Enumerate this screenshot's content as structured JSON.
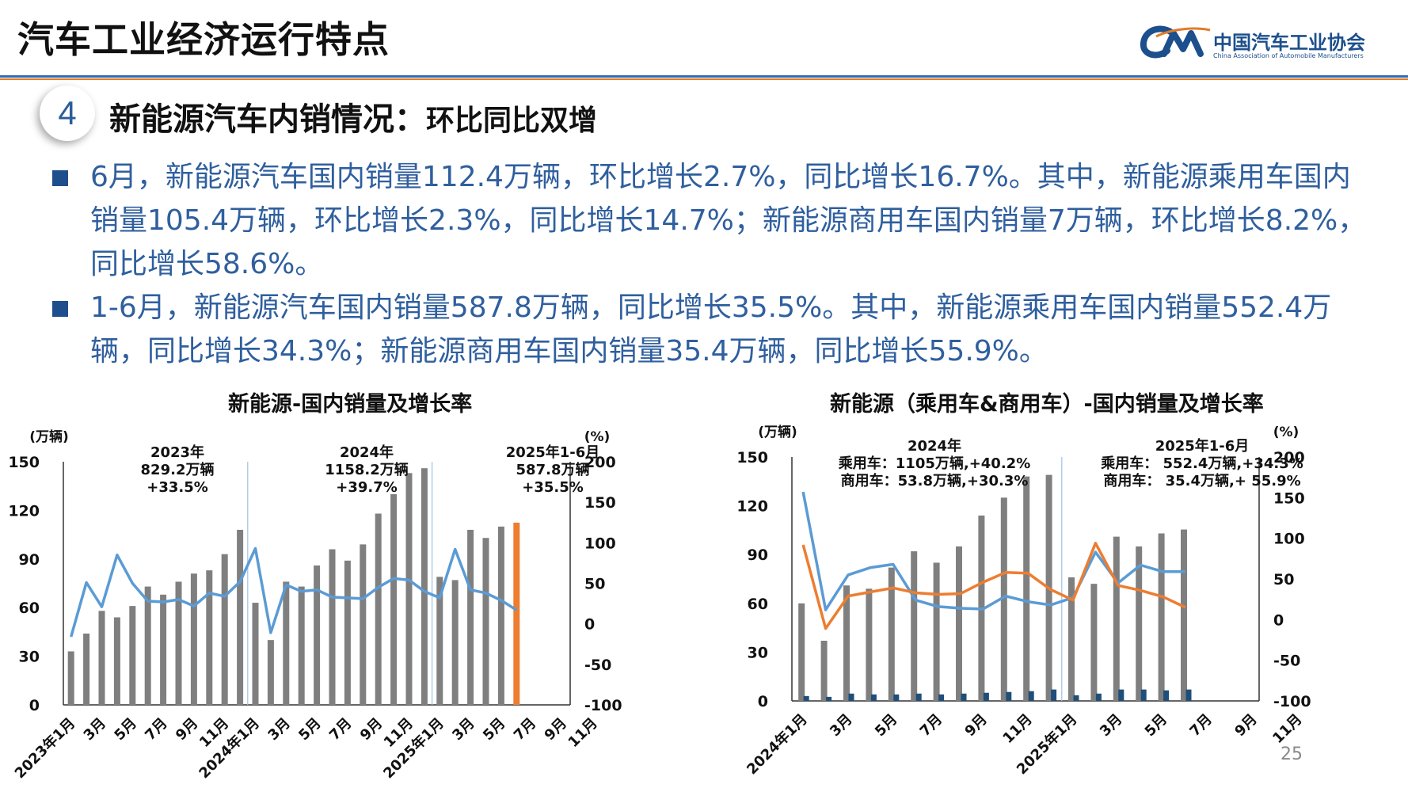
{
  "header": {
    "title": "汽车工业经济运行特点",
    "logo_cn": "中国汽车工业协会",
    "logo_en": "China Association of Automobile Manufacturers"
  },
  "section": {
    "number": "4",
    "title": "新能源汽车内销情况：",
    "subtitle": "环比同比双增"
  },
  "bullets": [
    "6月，新能源汽车国内销量112.4万辆，环比增长2.7%，同比增长16.7%。其中，新能源乘用车国内销量105.4万辆，环比增长2.3%，同比增长14.7%；新能源商用车国内销量7万辆，环比增长8.2%，同比增长58.6%。",
    "1-6月，新能源汽车国内销量587.8万辆，同比增长35.5%。其中，新能源乘用车国内销量552.4万辆，同比增长34.3%；新能源商用车国内销量35.4万辆，同比增长55.9%。"
  ],
  "page_number": "25",
  "colors": {
    "bar_gray": "#7f7f7f",
    "bar_highlight": "#ed7d31",
    "line_blue": "#5b9bd5",
    "line_orange": "#ed7d31",
    "bar_navy": "#1f4e79"
  },
  "chart_data": [
    {
      "type": "bar",
      "title": "新能源-国内销量及增长率",
      "y_left_unit": "(万辆)",
      "y_right_unit": "(%)",
      "ylim_left": [
        0,
        150
      ],
      "yticks_left": [
        "0",
        "30",
        "60",
        "90",
        "120",
        "150"
      ],
      "ylim_right": [
        -100,
        200
      ],
      "yticks_right": [
        "-100",
        "-50",
        "0",
        "50",
        "100",
        "150",
        "200"
      ],
      "x_tick_labels": [
        "2023年1月",
        "3月",
        "5月",
        "7月",
        "9月",
        "11月",
        "2024年1月",
        "3月",
        "5月",
        "7月",
        "9月",
        "11月",
        "2025年1月",
        "3月",
        "5月",
        "7月",
        "9月",
        "11月"
      ],
      "annotations": [
        {
          "lines": [
            "2023年",
            "829.2万辆",
            "+33.5%"
          ]
        },
        {
          "lines": [
            "2024年",
            "1158.2万辆",
            "+39.7%"
          ]
        },
        {
          "lines": [
            "2025年1-6月",
            "587.8万辆",
            "+35.5%"
          ]
        }
      ],
      "series": [
        {
          "kind": "bar",
          "values": [
            33,
            44,
            58,
            54,
            61,
            73,
            68,
            76,
            81,
            83,
            93,
            108,
            63,
            40,
            76,
            73,
            86,
            96,
            89,
            99,
            118,
            130,
            143,
            146,
            79,
            77,
            108,
            103,
            110,
            112.4
          ],
          "highlight_last": true
        },
        {
          "kind": "line",
          "axis": "right",
          "values": [
            -16,
            51,
            21,
            85,
            50,
            28,
            27,
            30,
            22,
            38,
            34,
            52,
            93,
            -11,
            48,
            40,
            42,
            33,
            32,
            31,
            45,
            56,
            54,
            40,
            32,
            92,
            42,
            38,
            29,
            17
          ]
        }
      ]
    },
    {
      "type": "bar",
      "title": "新能源（乘用车&商用车）-国内销量及增长率",
      "y_left_unit": "(万辆)",
      "y_right_unit": "(%)",
      "ylim_left": [
        0,
        150
      ],
      "yticks_left": [
        "0",
        "30",
        "60",
        "90",
        "120",
        "150"
      ],
      "ylim_right": [
        -100,
        200
      ],
      "yticks_right": [
        "-100",
        "-50",
        "0",
        "50",
        "100",
        "150",
        "200"
      ],
      "x_tick_labels": [
        "2024年1月",
        "3月",
        "5月",
        "7月",
        "9月",
        "11月",
        "2025年1月",
        "3月",
        "5月",
        "7月",
        "9月",
        "11月"
      ],
      "annotations": [
        {
          "lines": [
            "2024年",
            "乘用车：1105万辆,+40.2%",
            "商用车：53.8万辆,+30.3%"
          ]
        },
        {
          "lines": [
            "2025年1-6月",
            "乘用车：  552.4万辆,+34.3%",
            "商用车：  35.4万辆,+ 55.9%"
          ]
        }
      ],
      "series": [
        {
          "kind": "bar",
          "values": [
            60,
            37,
            71,
            69,
            82,
            92,
            85,
            95,
            114,
            125,
            138,
            139,
            76,
            72,
            101,
            95,
            103,
            105.4
          ]
        },
        {
          "kind": "bar",
          "values": [
            3,
            2.5,
            4.5,
            4,
            4,
            4.5,
            4,
            4.5,
            5,
            5.5,
            6,
            7,
            3.5,
            4.5,
            7,
            7,
            6.5,
            7
          ]
        },
        {
          "kind": "line",
          "axis": "right",
          "values": [
            157,
            12,
            55,
            64,
            68,
            24,
            16,
            14,
            13,
            29,
            22,
            18,
            27,
            83,
            45,
            67,
            59,
            59
          ]
        },
        {
          "kind": "line",
          "axis": "right",
          "values": [
            92,
            -11,
            29,
            34,
            39,
            33,
            31,
            32,
            46,
            58,
            57,
            37,
            24,
            94,
            42,
            36,
            28,
            15
          ]
        }
      ]
    }
  ]
}
